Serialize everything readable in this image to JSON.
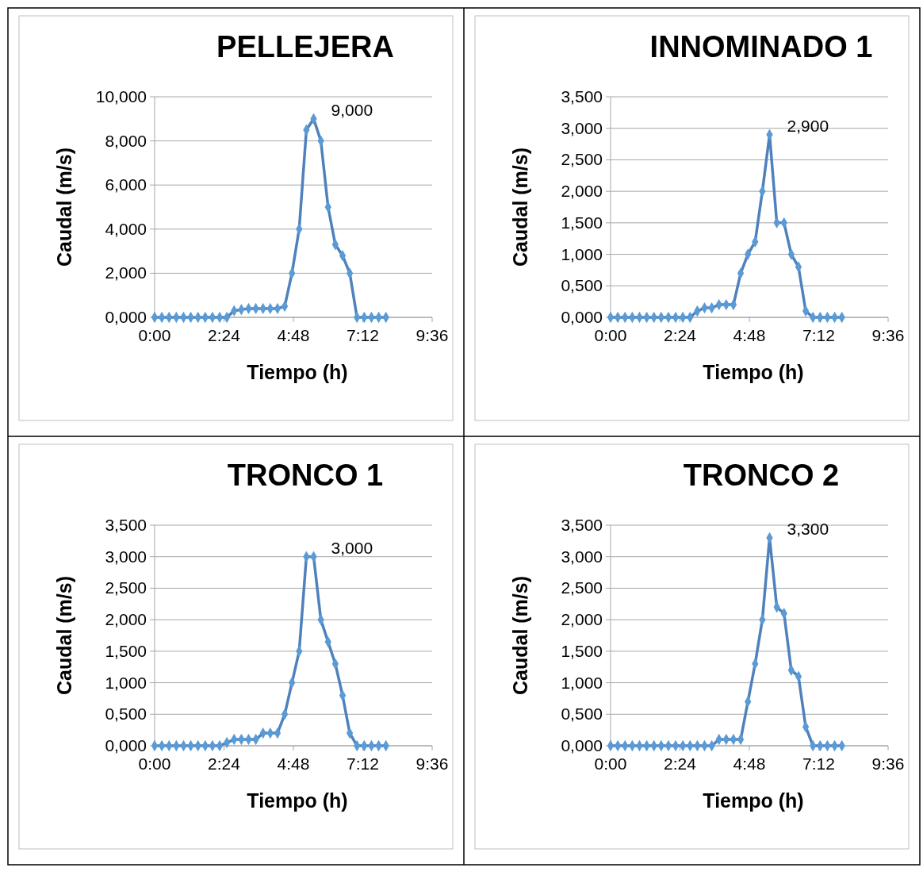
{
  "chart_data": [
    {
      "type": "line",
      "title": "PELLEJERA",
      "xlabel": "Tiempo (h)",
      "ylabel": "Caudal (m/s)",
      "x": [
        0,
        0.25,
        0.5,
        0.75,
        1,
        1.25,
        1.5,
        1.75,
        2,
        2.25,
        2.5,
        2.75,
        3,
        3.25,
        3.5,
        3.75,
        4,
        4.25,
        4.5,
        4.75,
        5,
        5.25,
        5.5,
        5.75,
        6,
        6.25,
        6.5,
        6.75,
        7,
        7.25,
        7.5,
        7.75,
        8
      ],
      "series": [
        {
          "color": "#4f81bd",
          "values": [
            0,
            0,
            0,
            0,
            0,
            0,
            0,
            0,
            0,
            0,
            0,
            0.3,
            0.35,
            0.4,
            0.4,
            0.4,
            0.4,
            0.4,
            0.5,
            2,
            4,
            8.5,
            9,
            8,
            5,
            3.3,
            2.8,
            2,
            0,
            0,
            0,
            0,
            0
          ],
          "value_labels": [
            null,
            null,
            null,
            null,
            null,
            null,
            null,
            null,
            null,
            null,
            null,
            null,
            null,
            null,
            null,
            null,
            null,
            null,
            null,
            null,
            null,
            null,
            "9,000",
            null,
            null,
            null,
            null,
            null,
            null,
            null,
            null,
            null,
            null
          ]
        }
      ],
      "xlim": [
        0,
        9.6
      ],
      "xticks": [
        {
          "value": 0,
          "label": "0:00"
        },
        {
          "value": 2.4,
          "label": "2:24"
        },
        {
          "value": 4.8,
          "label": "4:48"
        },
        {
          "value": 7.2,
          "label": "7:12"
        },
        {
          "value": 9.6,
          "label": "9:36"
        }
      ],
      "ylim": [
        0,
        10
      ],
      "yticks": [
        {
          "value": 0,
          "label": "0,000"
        },
        {
          "value": 2,
          "label": "2,000"
        },
        {
          "value": 4,
          "label": "4,000"
        },
        {
          "value": 6,
          "label": "6,000"
        },
        {
          "value": 8,
          "label": "8,000"
        },
        {
          "value": 10,
          "label": "10,000"
        }
      ],
      "grid": "y",
      "marker": "diamond"
    },
    {
      "type": "line",
      "title": "INNOMINADO 1",
      "xlabel": "Tiempo (h)",
      "ylabel": "Caudal (m/s)",
      "x": [
        0,
        0.25,
        0.5,
        0.75,
        1,
        1.25,
        1.5,
        1.75,
        2,
        2.25,
        2.5,
        2.75,
        3,
        3.25,
        3.5,
        3.75,
        4,
        4.25,
        4.5,
        4.75,
        5,
        5.25,
        5.5,
        5.75,
        6,
        6.25,
        6.5,
        6.75,
        7,
        7.25,
        7.5,
        7.75,
        8
      ],
      "series": [
        {
          "color": "#4f81bd",
          "values": [
            0,
            0,
            0,
            0,
            0,
            0,
            0,
            0,
            0,
            0,
            0,
            0,
            0.1,
            0.15,
            0.15,
            0.2,
            0.2,
            0.2,
            0.7,
            1,
            1.2,
            2,
            2.9,
            1.5,
            1.5,
            1,
            0.8,
            0.1,
            0,
            0,
            0,
            0,
            0
          ],
          "value_labels": [
            null,
            null,
            null,
            null,
            null,
            null,
            null,
            null,
            null,
            null,
            null,
            null,
            null,
            null,
            null,
            null,
            null,
            null,
            null,
            null,
            null,
            null,
            "2,900",
            null,
            null,
            null,
            null,
            null,
            null,
            null,
            null,
            null,
            null
          ]
        }
      ],
      "xlim": [
        0,
        9.6
      ],
      "xticks": [
        {
          "value": 0,
          "label": "0:00"
        },
        {
          "value": 2.4,
          "label": "2:24"
        },
        {
          "value": 4.8,
          "label": "4:48"
        },
        {
          "value": 7.2,
          "label": "7:12"
        },
        {
          "value": 9.6,
          "label": "9:36"
        }
      ],
      "ylim": [
        0,
        3.5
      ],
      "yticks": [
        {
          "value": 0,
          "label": "0,000"
        },
        {
          "value": 0.5,
          "label": "0,500"
        },
        {
          "value": 1,
          "label": "1,000"
        },
        {
          "value": 1.5,
          "label": "1,500"
        },
        {
          "value": 2,
          "label": "2,000"
        },
        {
          "value": 2.5,
          "label": "2,500"
        },
        {
          "value": 3,
          "label": "3,000"
        },
        {
          "value": 3.5,
          "label": "3,500"
        }
      ],
      "grid": "y",
      "marker": "diamond"
    },
    {
      "type": "line",
      "title": "TRONCO 1",
      "xlabel": "Tiempo (h)",
      "ylabel": "Caudal (m/s)",
      "x": [
        0,
        0.25,
        0.5,
        0.75,
        1,
        1.25,
        1.5,
        1.75,
        2,
        2.25,
        2.5,
        2.75,
        3,
        3.25,
        3.5,
        3.75,
        4,
        4.25,
        4.5,
        4.75,
        5,
        5.25,
        5.5,
        5.75,
        6,
        6.25,
        6.5,
        6.75,
        7,
        7.25,
        7.5,
        7.75,
        8
      ],
      "series": [
        {
          "color": "#4f81bd",
          "values": [
            0,
            0,
            0,
            0,
            0,
            0,
            0,
            0,
            0,
            0,
            0.05,
            0.1,
            0.1,
            0.1,
            0.1,
            0.2,
            0.2,
            0.2,
            0.5,
            1,
            1.5,
            3,
            3,
            2,
            1.65,
            1.3,
            0.8,
            0.2,
            0,
            0,
            0,
            0,
            0
          ],
          "value_labels": [
            null,
            null,
            null,
            null,
            null,
            null,
            null,
            null,
            null,
            null,
            null,
            null,
            null,
            null,
            null,
            null,
            null,
            null,
            null,
            null,
            null,
            null,
            "3,000",
            null,
            null,
            null,
            null,
            null,
            null,
            null,
            null,
            null,
            null
          ]
        }
      ],
      "xlim": [
        0,
        9.6
      ],
      "xticks": [
        {
          "value": 0,
          "label": "0:00"
        },
        {
          "value": 2.4,
          "label": "2:24"
        },
        {
          "value": 4.8,
          "label": "4:48"
        },
        {
          "value": 7.2,
          "label": "7:12"
        },
        {
          "value": 9.6,
          "label": "9:36"
        }
      ],
      "ylim": [
        0,
        3.5
      ],
      "yticks": [
        {
          "value": 0,
          "label": "0,000"
        },
        {
          "value": 0.5,
          "label": "0,500"
        },
        {
          "value": 1,
          "label": "1,000"
        },
        {
          "value": 1.5,
          "label": "1,500"
        },
        {
          "value": 2,
          "label": "2,000"
        },
        {
          "value": 2.5,
          "label": "2,500"
        },
        {
          "value": 3,
          "label": "3,000"
        },
        {
          "value": 3.5,
          "label": "3,500"
        }
      ],
      "grid": "y",
      "marker": "diamond"
    },
    {
      "type": "line",
      "title": "TRONCO 2",
      "xlabel": "Tiempo (h)",
      "ylabel": "Caudal (m/s)",
      "x": [
        0,
        0.25,
        0.5,
        0.75,
        1,
        1.25,
        1.5,
        1.75,
        2,
        2.25,
        2.5,
        2.75,
        3,
        3.25,
        3.5,
        3.75,
        4,
        4.25,
        4.5,
        4.75,
        5,
        5.25,
        5.5,
        5.75,
        6,
        6.25,
        6.5,
        6.75,
        7,
        7.25,
        7.5,
        7.75,
        8
      ],
      "series": [
        {
          "color": "#4f81bd",
          "values": [
            0,
            0,
            0,
            0,
            0,
            0,
            0,
            0,
            0,
            0,
            0,
            0,
            0,
            0,
            0,
            0.1,
            0.1,
            0.1,
            0.1,
            0.7,
            1.3,
            2,
            3.3,
            2.2,
            2.1,
            1.2,
            1.1,
            0.3,
            0,
            0,
            0,
            0,
            0
          ],
          "value_labels": [
            null,
            null,
            null,
            null,
            null,
            null,
            null,
            null,
            null,
            null,
            null,
            null,
            null,
            null,
            null,
            null,
            null,
            null,
            null,
            null,
            null,
            null,
            "3,300",
            null,
            null,
            null,
            null,
            null,
            null,
            null,
            null,
            null,
            null
          ]
        }
      ],
      "xlim": [
        0,
        9.6
      ],
      "xticks": [
        {
          "value": 0,
          "label": "0:00"
        },
        {
          "value": 2.4,
          "label": "2:24"
        },
        {
          "value": 4.8,
          "label": "4:48"
        },
        {
          "value": 7.2,
          "label": "7:12"
        },
        {
          "value": 9.6,
          "label": "9:36"
        }
      ],
      "ylim": [
        0,
        3.5
      ],
      "yticks": [
        {
          "value": 0,
          "label": "0,000"
        },
        {
          "value": 0.5,
          "label": "0,500"
        },
        {
          "value": 1,
          "label": "1,000"
        },
        {
          "value": 1.5,
          "label": "1,500"
        },
        {
          "value": 2,
          "label": "2,000"
        },
        {
          "value": 2.5,
          "label": "2,500"
        },
        {
          "value": 3,
          "label": "3,000"
        },
        {
          "value": 3.5,
          "label": "3,500"
        }
      ],
      "grid": "y",
      "marker": "diamond"
    }
  ]
}
